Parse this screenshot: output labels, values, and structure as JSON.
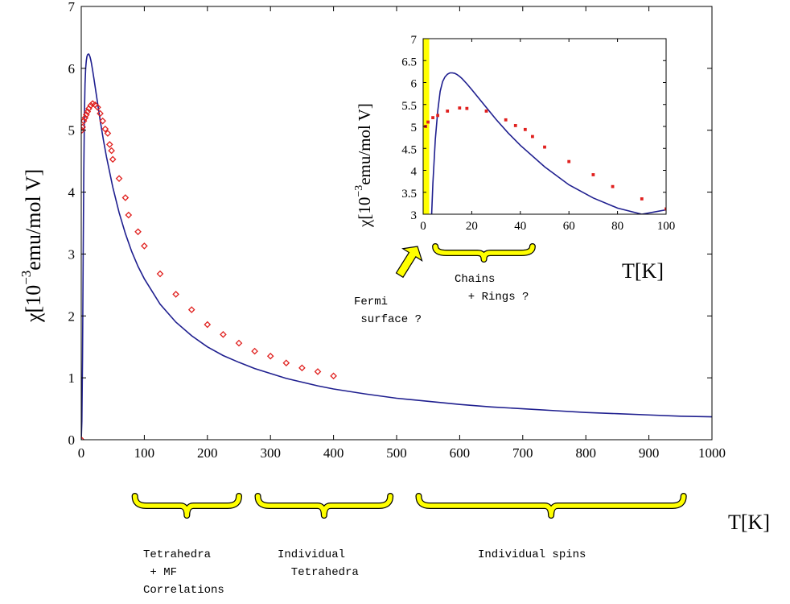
{
  "chart_data": [
    {
      "type": "line",
      "xlabel": "T[K]",
      "ylabel": "χ[10⁻³emu/mol V]",
      "ylabel_parts": {
        "prefix": "χ[10",
        "exponent": "−3",
        "suffix": "emu/mol V]"
      },
      "xlim": [
        0,
        1000
      ],
      "ylim": [
        0,
        7
      ],
      "xticks": [
        "0",
        "100",
        "200",
        "300",
        "400",
        "500",
        "600",
        "700",
        "800",
        "900",
        "1000"
      ],
      "yticks": [
        "0",
        "1",
        "2",
        "3",
        "4",
        "5",
        "6",
        "7"
      ],
      "grid": false,
      "series": [
        {
          "style": "line",
          "color": "#1f1f8f",
          "x": [
            0,
            1,
            2,
            3,
            4,
            5,
            6,
            7,
            8,
            9,
            10,
            11,
            12,
            13,
            14,
            15,
            16,
            18,
            20,
            25,
            30,
            35,
            40,
            50,
            60,
            70,
            80,
            90,
            100,
            125,
            150,
            175,
            200,
            225,
            250,
            275,
            300,
            325,
            350,
            375,
            400,
            450,
            500,
            550,
            600,
            650,
            700,
            750,
            800,
            850,
            900,
            950,
            1000
          ],
          "y": [
            0,
            0.3,
            1.3,
            2.9,
            4.3,
            5.25,
            5.75,
            6.0,
            6.12,
            6.19,
            6.22,
            6.23,
            6.23,
            6.21,
            6.18,
            6.14,
            6.09,
            5.97,
            5.84,
            5.5,
            5.16,
            4.85,
            4.57,
            4.08,
            3.67,
            3.33,
            3.04,
            2.8,
            2.6,
            2.19,
            1.9,
            1.68,
            1.5,
            1.36,
            1.25,
            1.15,
            1.07,
            0.99,
            0.93,
            0.87,
            0.82,
            0.74,
            0.67,
            0.62,
            0.57,
            0.53,
            0.5,
            0.47,
            0.44,
            0.42,
            0.4,
            0.38,
            0.37
          ]
        },
        {
          "style": "markers",
          "marker": "diamond",
          "color": "#e0201e",
          "x": [
            0,
            1,
            2,
            4,
            6,
            8,
            10,
            12,
            15,
            18,
            22,
            26,
            30,
            34,
            38,
            42,
            45,
            48,
            50,
            60,
            70,
            75,
            90,
            100,
            125,
            150,
            175,
            200,
            225,
            250,
            275,
            300,
            325,
            350,
            375,
            400
          ],
          "y": [
            0,
            5.0,
            5.05,
            5.15,
            5.2,
            5.25,
            5.3,
            5.35,
            5.4,
            5.43,
            5.41,
            5.37,
            5.27,
            5.15,
            5.02,
            4.95,
            4.77,
            4.67,
            4.53,
            4.22,
            3.91,
            3.63,
            3.36,
            3.13,
            2.68,
            2.35,
            2.1,
            1.86,
            1.7,
            1.56,
            1.43,
            1.35,
            1.24,
            1.16,
            1.1,
            1.03
          ]
        }
      ]
    },
    {
      "type": "line",
      "inset": true,
      "xlabel": "T[K]",
      "ylabel": "χ[10⁻³emu/mol V]",
      "ylabel_parts": {
        "prefix": "χ[10",
        "exponent": "−3",
        "suffix": "emu/mol V]"
      },
      "xlim": [
        0,
        100
      ],
      "ylim": [
        3,
        7
      ],
      "xticks": [
        "0",
        "20",
        "40",
        "60",
        "80",
        "100"
      ],
      "yticks": [
        "3",
        "3.5",
        "4",
        "4.5",
        "5",
        "5.5",
        "6",
        "6.5",
        "7"
      ],
      "highlight_band": {
        "x_from": 0,
        "x_to": 2.5,
        "color": "#ffff00"
      },
      "series": [
        {
          "style": "line",
          "color": "#1f1f8f",
          "x": [
            3.5,
            4,
            5,
            6,
            7,
            8,
            9,
            10,
            11,
            12,
            13,
            14,
            15,
            16,
            18,
            20,
            25,
            30,
            35,
            40,
            50,
            60,
            70,
            80,
            90,
            100
          ],
          "y": [
            3.0,
            3.7,
            4.7,
            5.35,
            5.8,
            6.02,
            6.13,
            6.19,
            6.22,
            6.22,
            6.21,
            6.18,
            6.14,
            6.09,
            5.97,
            5.84,
            5.5,
            5.16,
            4.85,
            4.57,
            4.08,
            3.67,
            3.37,
            3.14,
            3.0,
            3.1
          ]
        },
        {
          "style": "markers",
          "marker": "dot",
          "color": "#e0201e",
          "x": [
            1,
            2,
            4,
            6,
            10,
            15,
            18,
            26,
            34,
            38,
            42,
            45,
            50,
            60,
            70,
            78,
            90,
            100
          ],
          "y": [
            5.0,
            5.1,
            5.2,
            5.25,
            5.35,
            5.42,
            5.41,
            5.35,
            5.15,
            5.02,
            4.93,
            4.77,
            4.53,
            4.2,
            3.9,
            3.63,
            3.35,
            3.12
          ]
        }
      ]
    }
  ],
  "annotations": {
    "main_brackets": [
      {
        "x_from": 85,
        "x_to": 250,
        "label_lines": [
          "Tetrahedra",
          " + MF",
          "Correlations"
        ]
      },
      {
        "x_from": 280,
        "x_to": 490,
        "label_lines": [
          "Individual",
          "  Tetrahedra"
        ]
      },
      {
        "x_from": 535,
        "x_to": 955,
        "label_lines": [
          "Individual spins"
        ]
      }
    ],
    "inset_bracket": {
      "x_from": 5,
      "x_to": 45,
      "label_lines": [
        "Chains",
        "  + Rings ?"
      ]
    },
    "arrow_label_lines": [
      "Fermi",
      " surface ?"
    ],
    "arrow_color": "#ffff00",
    "bracket_color": "#ffff00"
  }
}
